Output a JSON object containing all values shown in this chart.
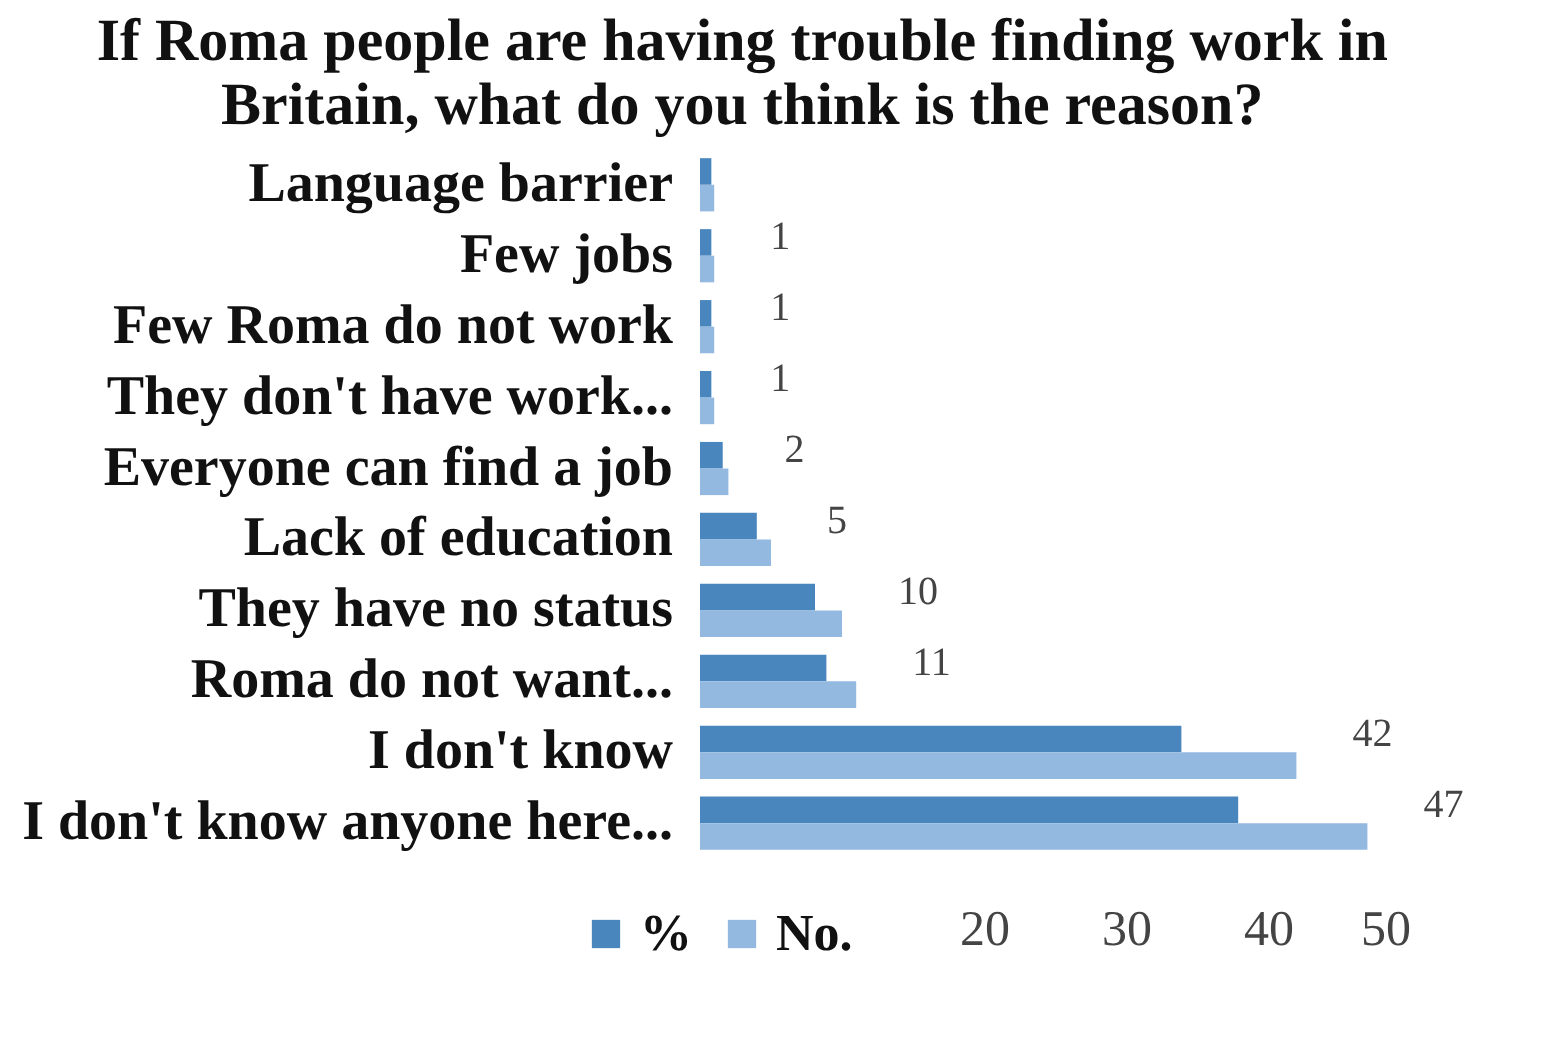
{
  "chart_data": {
    "type": "bar",
    "orientation": "horizontal",
    "title": "If Roma people are having trouble finding work in Britain, what do you think is the reason?",
    "categories": [
      "Language barrier",
      "Few jobs",
      "Few Roma do not work",
      "They don't have work...",
      "Everyone can find a job",
      "Lack of education",
      "They have no status",
      "Roma do not want...",
      "I don't know",
      "I don't know anyone here..."
    ],
    "series": [
      {
        "name": "%",
        "color": "#4a86be",
        "values": [
          0.8,
          0.8,
          0.8,
          0.8,
          1.6,
          4.0,
          8.1,
          8.9,
          33.9,
          37.9
        ]
      },
      {
        "name": "No.",
        "color": "#93b9e0",
        "values": [
          1,
          1,
          1,
          1,
          2,
          5,
          10,
          11,
          42,
          47
        ],
        "value_labels": [
          null,
          "1",
          "1",
          "1",
          "2",
          "5",
          "10",
          "11",
          "42",
          "47"
        ]
      }
    ],
    "xlim": [
      0,
      50
    ],
    "xticks": [
      20,
      30,
      40,
      50
    ],
    "legend": "bottom left",
    "grid": false
  }
}
